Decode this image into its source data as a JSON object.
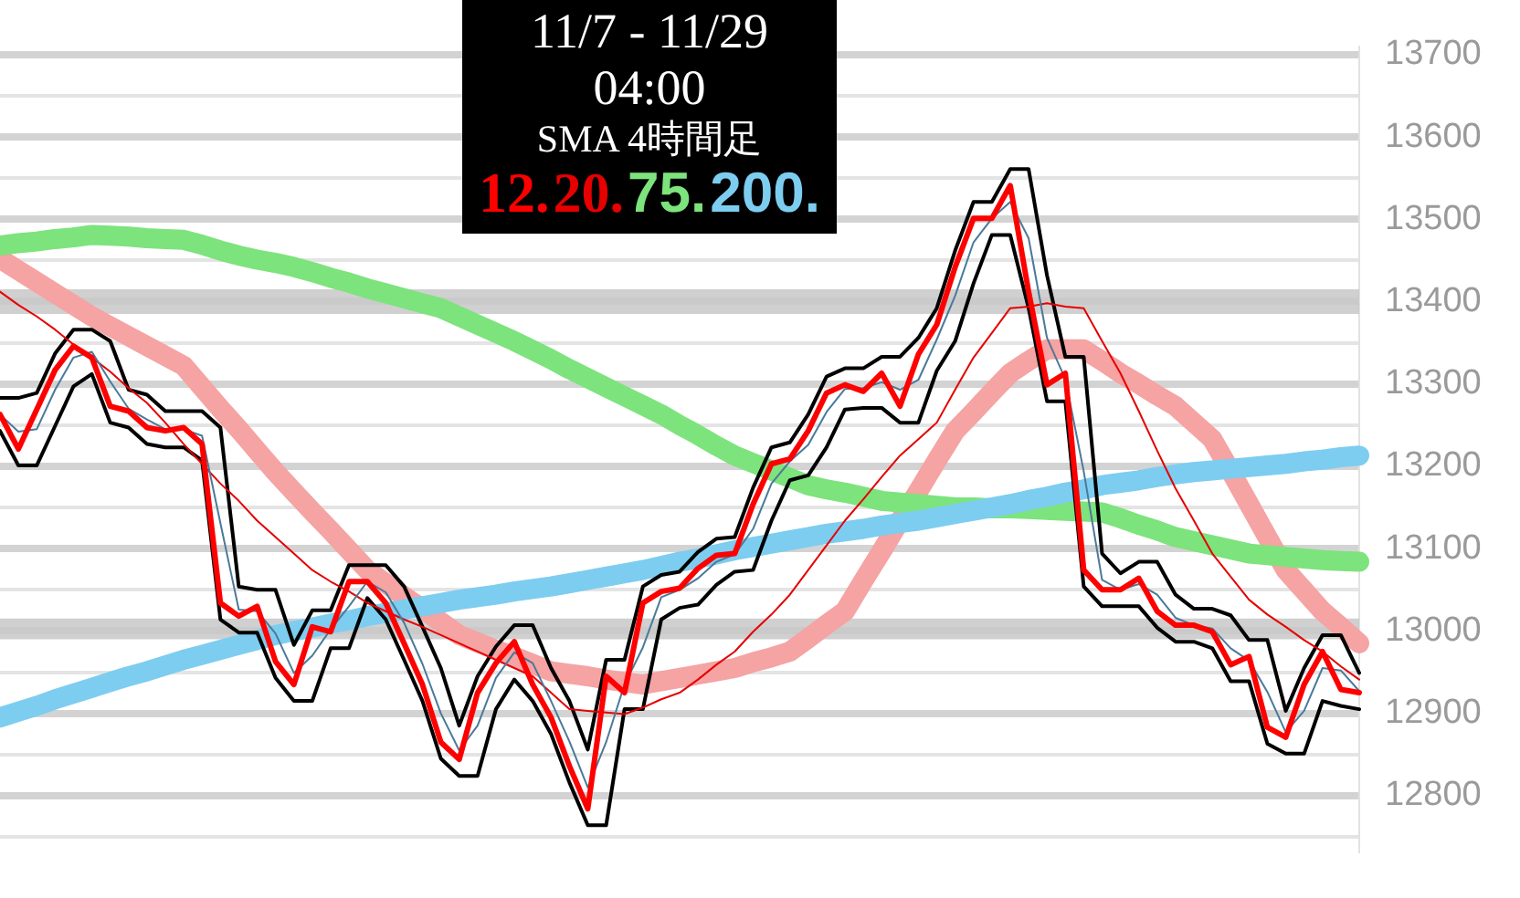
{
  "chart_data": {
    "type": "line",
    "title": "11/7 - 11/29",
    "subtitle": "04:00",
    "annotations": [
      "SMA 4時間足"
    ],
    "legend": "top",
    "grid": "y",
    "marker": "none",
    "line_style": "solid",
    "categories": [
      null,
      null,
      null,
      null,
      null,
      null,
      null,
      null,
      null,
      null,
      null,
      null,
      null,
      null,
      null,
      null,
      null,
      null,
      null,
      null,
      null,
      null,
      null,
      null,
      null,
      null,
      null,
      null,
      null,
      null,
      null,
      null,
      null,
      null,
      null,
      null,
      null,
      null,
      null,
      null,
      null,
      null,
      null,
      null,
      null,
      null,
      null,
      null,
      null,
      null,
      null,
      null,
      null,
      null,
      null,
      null,
      null,
      null,
      null,
      null,
      null,
      null,
      null,
      null,
      null,
      null,
      null,
      null,
      null,
      null,
      null,
      null,
      null,
      null,
      null
    ],
    "ylim": [
      12732,
      13710
    ],
    "yticks": [
      {
        "value": 12750,
        "label": null
      },
      12800,
      {
        "value": 12850,
        "label": null
      },
      12900,
      {
        "value": 12950,
        "label": null
      },
      13000,
      {
        "value": 13050,
        "label": null
      },
      13100,
      {
        "value": 13150,
        "label": null
      },
      13200,
      {
        "value": 13250,
        "label": null
      },
      13300,
      {
        "value": 13350,
        "label": null
      },
      13400,
      {
        "value": 13450,
        "label": null
      },
      13500,
      {
        "value": 13550,
        "label": null
      },
      13600,
      {
        "value": 13650,
        "label": null
      },
      13700
    ],
    "bands": [
      {
        "axis": "y",
        "from": 13385,
        "to": 13415,
        "color": "#c8c8c8"
      },
      {
        "axis": "y",
        "from": 12990,
        "to": 13015,
        "color": "#c8c8c8"
      }
    ],
    "series": [
      {
        "name": "12.",
        "color": "#ff0000",
        "values": [
          13263,
          13221,
          13269,
          13317,
          13346,
          13332,
          13273,
          13267,
          13247,
          13243,
          13247,
          13227,
          13034,
          13018,
          13030,
          12963,
          12935,
          13005,
          12999,
          13060,
          13060,
          13034,
          12985,
          12935,
          12865,
          12844,
          12925,
          12961,
          12987,
          12935,
          12895,
          12836,
          12784,
          12945,
          12925,
          13034,
          13048,
          13052,
          13076,
          13092,
          13094,
          13154,
          13203,
          13209,
          13243,
          13289,
          13299,
          13291,
          13313,
          13273,
          13336,
          13372,
          13442,
          13501,
          13501,
          13541,
          13412,
          13299,
          13313,
          13074,
          13050,
          13050,
          13064,
          13024,
          13007,
          13007,
          12999,
          12959,
          12969,
          12883,
          12871,
          12935,
          12975,
          12929,
          12925
        ]
      },
      {
        "color": "#f5a3a3",
        "values": [
          13452,
          13438,
          13424,
          13410,
          13396,
          13382,
          13370,
          13358,
          13346,
          13334,
          13322,
          13296,
          13270,
          13245,
          13219,
          13193,
          13169,
          13145,
          13122,
          13098,
          13074,
          13058,
          13042,
          13027,
          13011,
          12995,
          12986,
          12977,
          12969,
          12960,
          12951,
          12948,
          12945,
          12941,
          12938,
          12935,
          12939,
          12943,
          12947,
          12951,
          12955,
          12962,
          12968,
          12975,
          12991,
          13008,
          13024,
          13061,
          13097,
          13134,
          13170,
          13207,
          13243,
          13266,
          13290,
          13313,
          13328,
          13342,
          13342,
          13342,
          13328,
          13313,
          13300,
          13286,
          13273,
          13253,
          13233,
          13194,
          13154,
          13114,
          13074,
          13049,
          13024,
          13005,
          12985
        ]
      },
      {
        "name": "20.",
        "color": "#e60000",
        "values": [
          13412,
          13396,
          13382,
          13366,
          13348,
          13332,
          13315,
          13295,
          13277,
          13253,
          13227,
          13203,
          13179,
          13158,
          13134,
          13114,
          13094,
          13074,
          13060,
          13048,
          13034,
          13024,
          13014,
          13005,
          12995,
          12985,
          12975,
          12965,
          12955,
          12945,
          12925,
          12905,
          12903,
          12901,
          12899,
          12907,
          12917,
          12925,
          12941,
          12959,
          12975,
          12999,
          13020,
          13044,
          13074,
          13104,
          13134,
          13160,
          13187,
          13213,
          13233,
          13253,
          13293,
          13332,
          13362,
          13392,
          13394,
          13398,
          13394,
          13392,
          13352,
          13313,
          13267,
          13219,
          13173,
          13134,
          13094,
          13066,
          13038,
          13020,
          13005,
          12989,
          12975,
          12957,
          12941
        ]
      },
      {
        "name": "75.",
        "color": "#7de37d",
        "values": [
          13468,
          13471,
          13473,
          13476,
          13478,
          13481,
          13480,
          13479,
          13477,
          13476,
          13475,
          13469,
          13462,
          13456,
          13451,
          13447,
          13442,
          13436,
          13429,
          13423,
          13416,
          13410,
          13404,
          13398,
          13392,
          13382,
          13372,
          13362,
          13352,
          13341,
          13330,
          13318,
          13307,
          13296,
          13285,
          13274,
          13263,
          13250,
          13238,
          13225,
          13213,
          13204,
          13195,
          13186,
          13177,
          13172,
          13168,
          13163,
          13158,
          13156,
          13154,
          13152,
          13150,
          13150,
          13149,
          13149,
          13148,
          13147,
          13146,
          13145,
          13144,
          13137,
          13129,
          13122,
          13114,
          13109,
          13104,
          13099,
          13094,
          13092,
          13090,
          13088,
          13086,
          13085,
          13084
        ]
      },
      {
        "name": "200.",
        "color": "#7dcdf0",
        "values": [
          12895,
          12902,
          12909,
          12917,
          12924,
          12931,
          12938,
          12945,
          12951,
          12958,
          12965,
          12971,
          12977,
          12983,
          12989,
          12995,
          13000,
          13004,
          13009,
          13013,
          13018,
          13022,
          13026,
          13030,
          13034,
          13038,
          13041,
          13044,
          13048,
          13051,
          13054,
          13058,
          13062,
          13066,
          13070,
          13074,
          13079,
          13084,
          13088,
          13093,
          13098,
          13102,
          13106,
          13110,
          13114,
          13118,
          13121,
          13124,
          13128,
          13131,
          13134,
          13138,
          13142,
          13146,
          13150,
          13154,
          13159,
          13163,
          13168,
          13172,
          13177,
          13180,
          13183,
          13187,
          13190,
          13193,
          13195,
          13197,
          13199,
          13201,
          13203,
          13206,
          13208,
          13211,
          13213
        ]
      },
      {
        "color": "#000000",
        "values": [
          13283,
          13283,
          13289,
          13337,
          13366,
          13366,
          13352,
          13293,
          13287,
          13267,
          13267,
          13267,
          13247,
          13054,
          13050,
          13050,
          12983,
          13025,
          13025,
          13080,
          13080,
          13080,
          13054,
          13005,
          12955,
          12885,
          12945,
          12981,
          13007,
          13007,
          12955,
          12915,
          12856,
          12965,
          12965,
          13054,
          13068,
          13072,
          13096,
          13112,
          13114,
          13174,
          13223,
          13229,
          13263,
          13309,
          13319,
          13319,
          13333,
          13333,
          13356,
          13392,
          13462,
          13521,
          13521,
          13561,
          13561,
          13432,
          13333,
          13333,
          13094,
          13070,
          13084,
          13084,
          13044,
          13027,
          13027,
          13019,
          12989,
          12989,
          12903,
          12955,
          12995,
          12995,
          12949
        ]
      },
      {
        "color": "#000000",
        "values": [
          13243,
          13201,
          13201,
          13249,
          13297,
          13312,
          13253,
          13247,
          13227,
          13223,
          13223,
          13207,
          13014,
          12998,
          12998,
          12943,
          12915,
          12915,
          12979,
          12979,
          13040,
          13014,
          12965,
          12915,
          12845,
          12824,
          12824,
          12905,
          12941,
          12915,
          12875,
          12816,
          12764,
          12764,
          12905,
          12905,
          13014,
          13028,
          13032,
          13056,
          13072,
          13074,
          13134,
          13183,
          13189,
          13223,
          13269,
          13271,
          13271,
          13253,
          13253,
          13316,
          13352,
          13422,
          13481,
          13481,
          13392,
          13279,
          13279,
          13054,
          13030,
          13030,
          13030,
          13004,
          12987,
          12987,
          12979,
          12939,
          12939,
          12863,
          12851,
          12851,
          12915,
          12909,
          12905
        ]
      },
      {
        "color": "#4a7a9a",
        "values": [
          13263,
          13242,
          13245,
          13293,
          13332,
          13339,
          13303,
          13270,
          13257,
          13245,
          13245,
          13237,
          13131,
          13026,
          13024,
          12997,
          12949,
          12970,
          13002,
          13030,
          13060,
          13047,
          13010,
          12960,
          12900,
          12855,
          12885,
          12943,
          12974,
          12961,
          12915,
          12866,
          12810,
          12865,
          12935,
          12980,
          13041,
          13050,
          13064,
          13084,
          13093,
          13124,
          13179,
          13206,
          13226,
          13266,
          13294,
          13295,
          13302,
          13293,
          13305,
          13354,
          13407,
          13472,
          13501,
          13521,
          13477,
          13356,
          13306,
          13194,
          13062,
          13050,
          13057,
          13044,
          13016,
          13007,
          13003,
          12979,
          12964,
          12926,
          12877,
          12903,
          12955,
          12952,
          12927
        ]
      }
    ]
  }
}
